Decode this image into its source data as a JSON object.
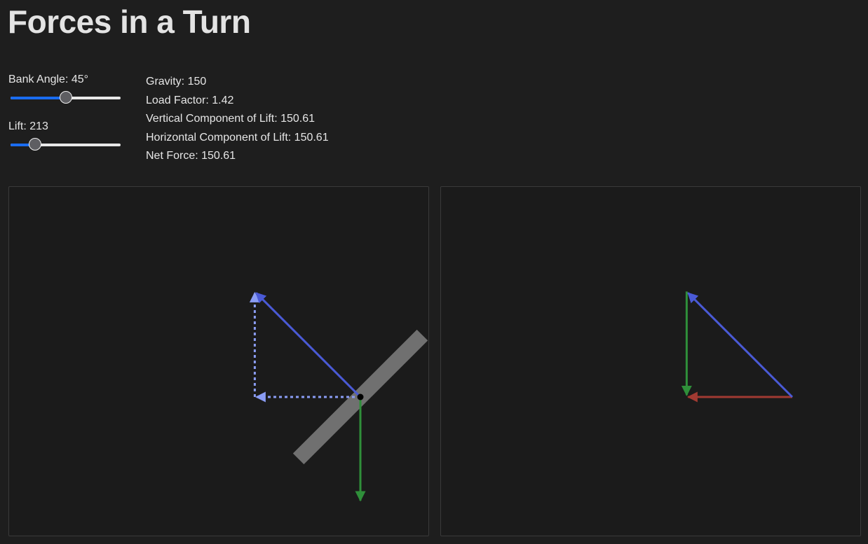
{
  "header": {
    "title": "Forces in a Turn"
  },
  "controls": {
    "bank_angle": {
      "label": "Bank Angle: 45°",
      "value": 45,
      "min": 0,
      "max": 90
    },
    "lift": {
      "label": "Lift: 213",
      "value": 213,
      "min": 100,
      "max": 600
    }
  },
  "stats": [
    "Gravity: 150",
    "Load Factor: 1.42",
    "Vertical Component of Lift: 150.61",
    "Horizontal Component of Lift: 150.61",
    "Net Force: 150.61"
  ],
  "colors": {
    "lift": "#4a5ad6",
    "lift_component": "#8a9cf4",
    "gravity": "#2f8f3a",
    "net": "#a13a32",
    "wing": "#707070",
    "point": "#000000"
  }
}
